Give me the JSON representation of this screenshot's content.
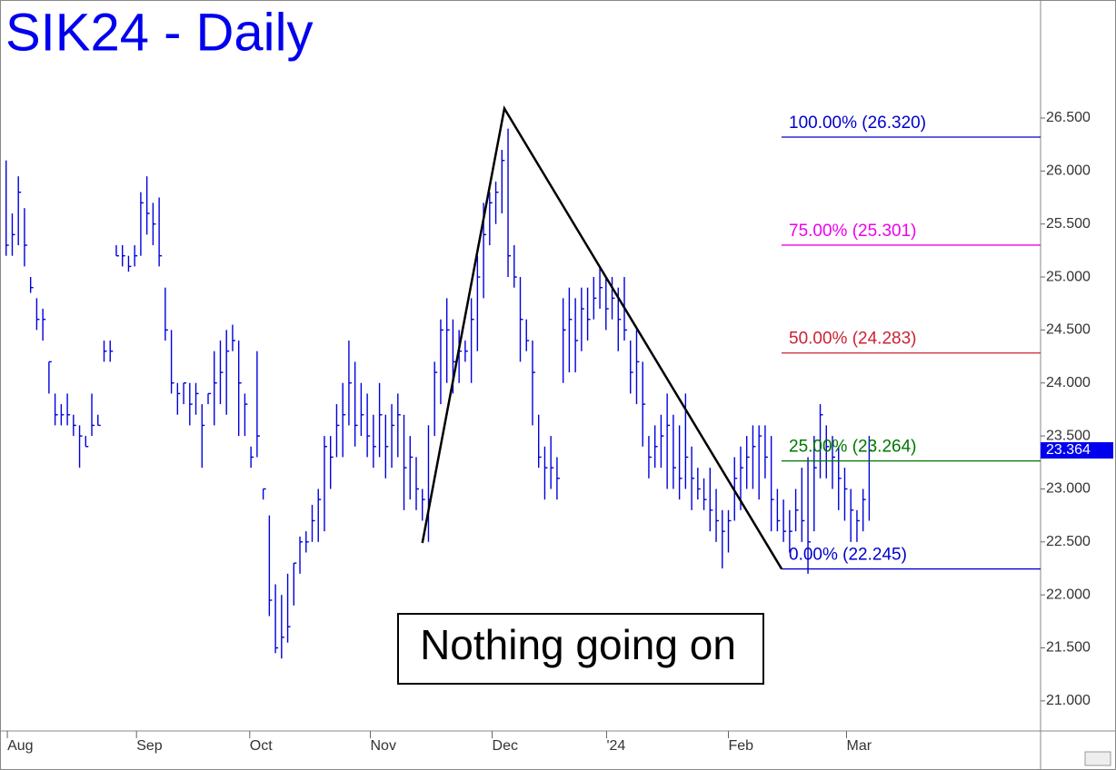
{
  "chart_data": {
    "type": "ohlc",
    "title": "SIK24 - Daily",
    "color": "#0000dd",
    "high": [
      26.1,
      25.6,
      25.95,
      25.65,
      25.0,
      24.8,
      24.7,
      24.2,
      23.9,
      23.8,
      23.9,
      23.7,
      23.6,
      23.5,
      23.9,
      23.7,
      24.4,
      24.4,
      25.3,
      25.3,
      25.2,
      25.3,
      25.8,
      25.95,
      25.7,
      25.75,
      24.9,
      24.5,
      24.0,
      24.0,
      24.0,
      24.0,
      23.8,
      23.9,
      24.3,
      24.4,
      24.5,
      24.55,
      24.4,
      23.9,
      23.4,
      24.3,
      23.0,
      22.75,
      22.1,
      22.0,
      22.2,
      22.3,
      22.55,
      22.6,
      22.85,
      23.0,
      23.5,
      23.5,
      23.8,
      24.0,
      24.4,
      24.2,
      24.0,
      23.9,
      23.7,
      24.0,
      23.7,
      23.8,
      23.9,
      23.7,
      23.5,
      23.3,
      23.0,
      23.6,
      24.2,
      24.6,
      24.8,
      24.6,
      24.5,
      24.4,
      24.8,
      25.2,
      25.7,
      25.8,
      25.9,
      26.2,
      26.4,
      25.3,
      25.0,
      24.6,
      24.4,
      23.7,
      23.4,
      23.5,
      23.3,
      24.8,
      24.9,
      24.8,
      24.9,
      24.9,
      25.0,
      25.1,
      25.0,
      25.0,
      24.9,
      25.0,
      24.4,
      24.5,
      24.2,
      23.5,
      23.6,
      23.7,
      23.9,
      23.7,
      23.6,
      23.9,
      23.4,
      23.2,
      23.1,
      23.2,
      23.0,
      22.8,
      22.8,
      23.3,
      23.4,
      23.5,
      23.6,
      23.6,
      23.6,
      23.5,
      23.0,
      22.9,
      22.8,
      23.0,
      23.2,
      23.3,
      23.5,
      23.8,
      23.6,
      23.5,
      23.4,
      23.2,
      23.0,
      22.8,
      23.0,
      23.5
    ],
    "low": [
      25.2,
      25.2,
      25.3,
      25.1,
      24.85,
      24.5,
      24.4,
      23.9,
      23.6,
      23.6,
      23.6,
      23.5,
      23.2,
      23.4,
      23.5,
      23.6,
      24.2,
      24.2,
      25.2,
      25.1,
      25.05,
      25.1,
      25.2,
      25.4,
      25.3,
      25.1,
      24.4,
      23.9,
      23.7,
      23.8,
      23.6,
      23.7,
      23.2,
      23.8,
      23.6,
      23.8,
      23.7,
      24.3,
      23.5,
      23.5,
      23.2,
      23.3,
      22.9,
      21.8,
      21.45,
      21.4,
      21.55,
      21.9,
      22.2,
      22.4,
      22.5,
      22.5,
      22.6,
      23.0,
      23.3,
      23.3,
      23.6,
      23.4,
      23.5,
      23.3,
      23.2,
      23.3,
      23.1,
      23.2,
      23.3,
      22.8,
      22.9,
      22.8,
      22.7,
      22.5,
      23.5,
      23.8,
      24.0,
      23.9,
      24.0,
      24.2,
      24.0,
      24.3,
      24.8,
      25.3,
      25.5,
      25.6,
      25.0,
      24.9,
      24.2,
      24.3,
      23.6,
      23.2,
      22.9,
      23.0,
      22.9,
      24.0,
      24.1,
      24.1,
      24.3,
      24.4,
      24.6,
      24.7,
      24.5,
      24.6,
      24.3,
      24.4,
      23.9,
      23.8,
      23.4,
      23.1,
      23.2,
      23.2,
      23.0,
      23.0,
      22.9,
      23.0,
      22.8,
      22.9,
      22.8,
      22.6,
      22.5,
      22.25,
      22.4,
      22.7,
      22.8,
      23.0,
      23.0,
      22.9,
      23.1,
      22.6,
      22.6,
      22.5,
      22.4,
      22.6,
      22.5,
      22.2,
      22.6,
      23.1,
      23.1,
      23.0,
      22.8,
      22.7,
      22.5,
      22.5,
      22.6,
      22.7
    ],
    "close": [
      25.3,
      25.4,
      25.8,
      25.3,
      24.9,
      24.6,
      24.6,
      24.2,
      23.7,
      23.7,
      23.7,
      23.6,
      23.5,
      23.4,
      23.6,
      23.6,
      24.3,
      24.3,
      25.2,
      25.2,
      25.1,
      25.2,
      25.7,
      25.6,
      25.5,
      25.2,
      24.5,
      24.0,
      23.9,
      24.0,
      23.8,
      23.9,
      23.6,
      23.9,
      24.0,
      24.1,
      24.3,
      24.4,
      24.0,
      23.8,
      23.3,
      23.5,
      23.0,
      21.95,
      21.5,
      21.6,
      21.7,
      22.3,
      22.5,
      22.5,
      22.7,
      22.9,
      23.4,
      23.3,
      23.6,
      23.7,
      24.0,
      23.6,
      23.7,
      23.5,
      23.4,
      23.7,
      23.4,
      23.6,
      23.7,
      23.2,
      23.3,
      23.0,
      22.9,
      22.9,
      24.1,
      24.5,
      24.5,
      24.2,
      24.3,
      24.3,
      24.6,
      25.0,
      25.4,
      25.7,
      25.8,
      26.1,
      25.2,
      25.0,
      24.6,
      24.4,
      24.1,
      23.3,
      23.2,
      23.2,
      23.1,
      24.5,
      24.6,
      24.4,
      24.7,
      24.6,
      24.8,
      24.9,
      24.7,
      24.8,
      24.6,
      24.5,
      24.1,
      24.2,
      23.8,
      23.3,
      23.4,
      23.5,
      23.6,
      23.2,
      23.1,
      23.3,
      23.1,
      23.0,
      22.9,
      22.8,
      22.7,
      22.6,
      22.7,
      23.1,
      23.2,
      23.3,
      23.4,
      23.5,
      23.3,
      22.9,
      22.7,
      22.6,
      22.6,
      22.8,
      22.7,
      22.5,
      23.2,
      23.7,
      23.4,
      23.3,
      23.1,
      23.0,
      22.8,
      22.7,
      22.9,
      23.364
    ],
    "xlim": [
      0,
      170
    ],
    "xticks": [
      {
        "value": 1.2,
        "label": "Aug"
      },
      {
        "value": 22.3,
        "label": "Sep"
      },
      {
        "value": 40.8,
        "label": "Oct"
      },
      {
        "value": 60.5,
        "label": "Nov"
      },
      {
        "value": 80.4,
        "label": "Dec"
      },
      {
        "value": 99.1,
        "label": "'24"
      },
      {
        "value": 119,
        "label": "Feb"
      },
      {
        "value": 138.3,
        "label": "Mar"
      }
    ],
    "ylim": [
      20.716,
      27.614
    ],
    "yticks": [
      {
        "value": 21,
        "label": "21.000"
      },
      {
        "value": 21.5,
        "label": "21.500"
      },
      {
        "value": 22,
        "label": "22.000"
      },
      {
        "value": 22.5,
        "label": "22.500"
      },
      {
        "value": 23,
        "label": "23.000"
      },
      {
        "value": 23.5,
        "label": "23.500"
      },
      {
        "value": 24,
        "label": "24.000"
      },
      {
        "value": 24.5,
        "label": "24.500"
      },
      {
        "value": 25,
        "label": "25.000"
      },
      {
        "value": 25.5,
        "label": "25.500"
      },
      {
        "value": 26,
        "label": "26.000"
      },
      {
        "value": 26.5,
        "label": "26.500"
      }
    ],
    "last_price": 23.364,
    "levels": [
      {
        "value": 26.32,
        "label": "100.00% (26.320)",
        "color": "#0000cc"
      },
      {
        "value": 25.301,
        "label": "75.00% (25.301)",
        "color": "#ee00ee"
      },
      {
        "value": 24.283,
        "label": "50.00% (24.283)",
        "color": "#cc2233"
      },
      {
        "value": 23.264,
        "label": "25.00% (23.264)",
        "color": "#007700"
      },
      {
        "value": 22.245,
        "label": "0.00% (22.245)",
        "color": "#0000cc"
      }
    ],
    "trendline": {
      "x": [
        69,
        82.4,
        127.7
      ],
      "y": [
        22.49,
        26.59,
        22.245
      ],
      "color": "#000000"
    },
    "annotation": "Nothing going on"
  }
}
